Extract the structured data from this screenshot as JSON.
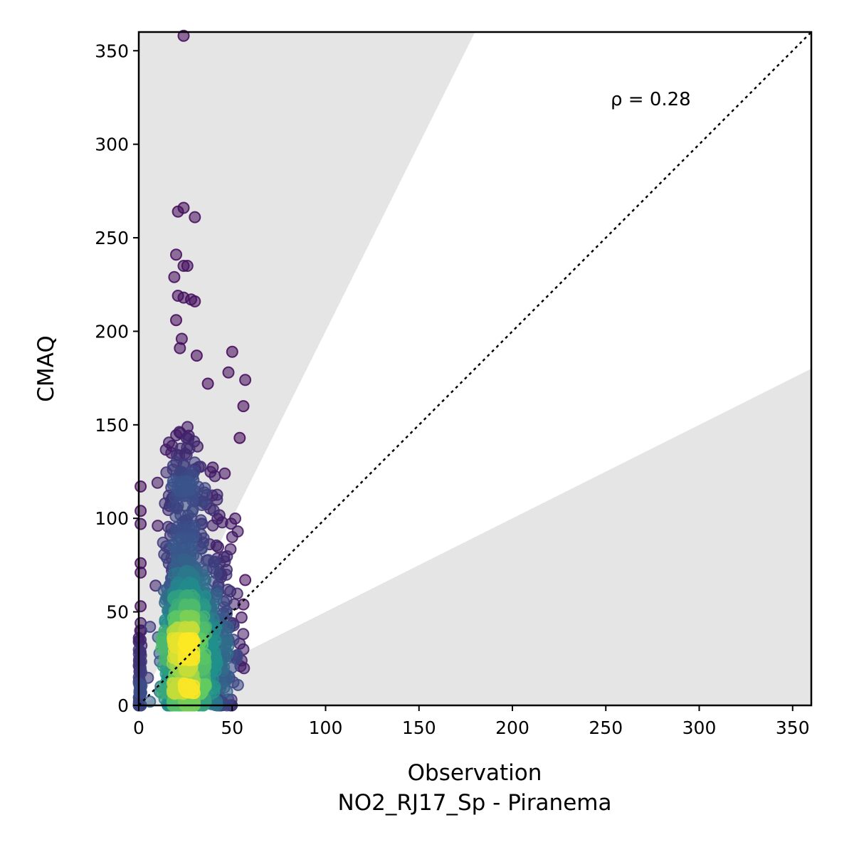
{
  "chart_data": {
    "type": "scatter",
    "xlabel": "Observation",
    "xlabel_line2": "NO2_RJ17_Sp - Piranema",
    "ylabel": "CMAQ",
    "annotation": "ρ = 0.28",
    "xlim": [
      0,
      360
    ],
    "ylim": [
      0,
      360
    ],
    "xticks": [
      "0",
      "50",
      "100",
      "150",
      "200",
      "250",
      "300",
      "350"
    ],
    "yticks": [
      "0",
      "50",
      "100",
      "150",
      "200",
      "250",
      "300",
      "350"
    ],
    "grid": false,
    "legend": "none",
    "reference_line": {
      "style": "dotted",
      "color": "#000000",
      "from": [
        0,
        0
      ],
      "to": [
        360,
        360
      ]
    },
    "shaded_regions": [
      {
        "description": "above factor-of-2 line",
        "color": "#e5e5e5",
        "polygon": [
          [
            0,
            0
          ],
          [
            180,
            360
          ],
          [
            0,
            360
          ]
        ]
      },
      {
        "description": "below factor-of-0.5 line",
        "color": "#e5e5e5",
        "polygon": [
          [
            0,
            0
          ],
          [
            360,
            0
          ],
          [
            360,
            180
          ]
        ]
      }
    ],
    "colormap": [
      "#440154",
      "#3b528b",
      "#21918c",
      "#5ec962",
      "#fde725"
    ],
    "point_alpha": 0.55,
    "outliers": [
      {
        "x": 24,
        "y": 358
      },
      {
        "x": 21,
        "y": 264
      },
      {
        "x": 24,
        "y": 266
      },
      {
        "x": 30,
        "y": 261
      },
      {
        "x": 20,
        "y": 241
      },
      {
        "x": 24,
        "y": 235
      },
      {
        "x": 26,
        "y": 235
      },
      {
        "x": 19,
        "y": 229
      },
      {
        "x": 21,
        "y": 219
      },
      {
        "x": 24,
        "y": 218
      },
      {
        "x": 28,
        "y": 217
      },
      {
        "x": 30,
        "y": 216
      },
      {
        "x": 20,
        "y": 206
      },
      {
        "x": 23,
        "y": 196
      },
      {
        "x": 22,
        "y": 191
      },
      {
        "x": 31,
        "y": 187
      },
      {
        "x": 50,
        "y": 189
      },
      {
        "x": 48,
        "y": 178
      },
      {
        "x": 57,
        "y": 174
      },
      {
        "x": 56,
        "y": 160
      },
      {
        "x": 37,
        "y": 172
      },
      {
        "x": 54,
        "y": 143
      },
      {
        "x": 46,
        "y": 124
      },
      {
        "x": 1,
        "y": 117
      },
      {
        "x": 10,
        "y": 119
      },
      {
        "x": 14,
        "y": 108
      },
      {
        "x": 1,
        "y": 104
      },
      {
        "x": 1,
        "y": 97
      },
      {
        "x": 13,
        "y": 87
      },
      {
        "x": 1,
        "y": 76
      },
      {
        "x": 1,
        "y": 71
      },
      {
        "x": 57,
        "y": 67
      },
      {
        "x": 53,
        "y": 93
      },
      {
        "x": 50,
        "y": 90
      },
      {
        "x": 9,
        "y": 64
      },
      {
        "x": 1,
        "y": 53
      },
      {
        "x": 6,
        "y": 42
      },
      {
        "x": 1,
        "y": 44
      },
      {
        "x": 1,
        "y": 35
      },
      {
        "x": 56,
        "y": 54
      },
      {
        "x": 55,
        "y": 47
      },
      {
        "x": 54,
        "y": 33
      },
      {
        "x": 56,
        "y": 30
      },
      {
        "x": 55,
        "y": 24
      },
      {
        "x": 6,
        "y": 2
      },
      {
        "x": 1,
        "y": 20
      },
      {
        "x": 1,
        "y": 12
      },
      {
        "x": 42,
        "y": 4
      }
    ],
    "density_clusters": [
      {
        "x_center": 23,
        "x_spread": 4.5,
        "y_min": 0,
        "y_max": 150,
        "y_peak": 30,
        "count": 900
      },
      {
        "x_center": 32,
        "x_spread": 6,
        "y_min": 0,
        "y_max": 130,
        "y_peak": 35,
        "count": 420
      },
      {
        "x_center": 44,
        "x_spread": 5,
        "y_min": 0,
        "y_max": 100,
        "y_peak": 30,
        "count": 140
      },
      {
        "x_center": 0.5,
        "x_spread": 0.5,
        "y_min": 0,
        "y_max": 40,
        "y_peak": 5,
        "count": 60
      }
    ]
  }
}
